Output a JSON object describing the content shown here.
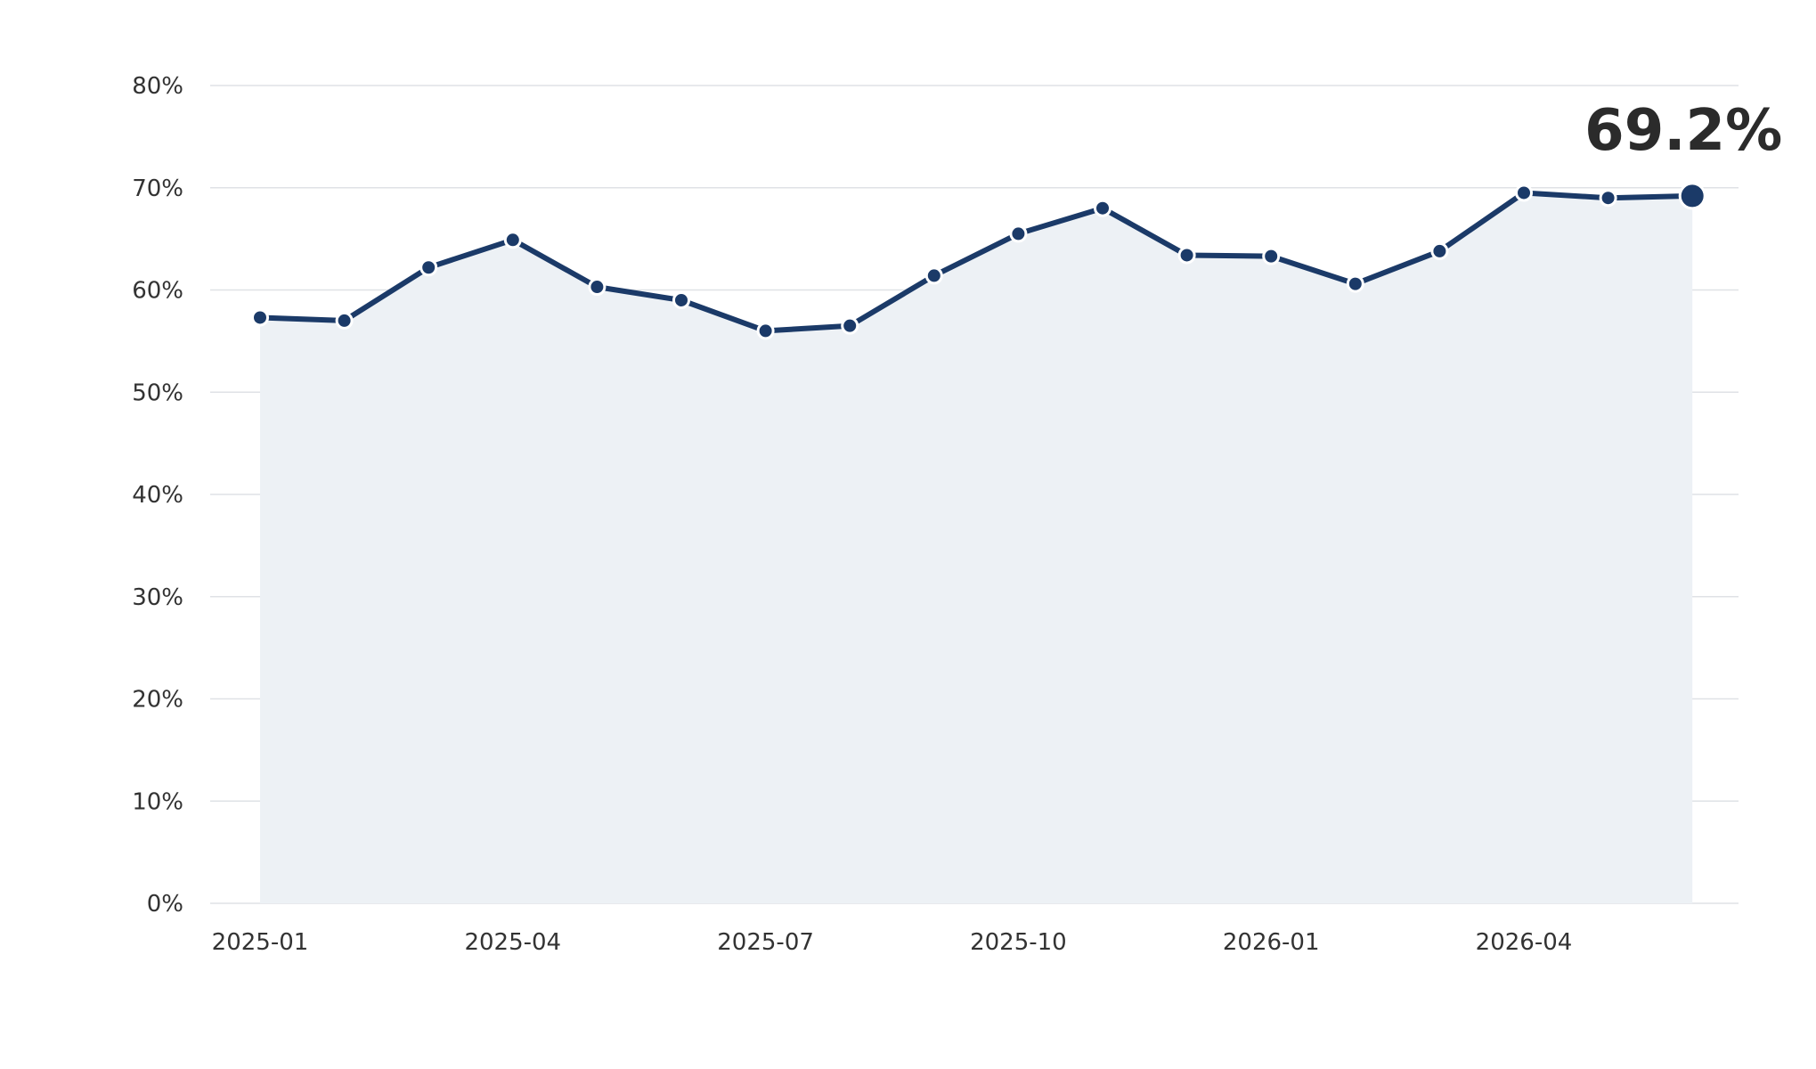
{
  "chart_data": {
    "type": "area",
    "title": "",
    "xlabel": "",
    "ylabel": "",
    "x": [
      "2025-01",
      "2025-02",
      "2025-03",
      "2025-04",
      "2025-05",
      "2025-06",
      "2025-07",
      "2025-08",
      "2025-09",
      "2025-10",
      "2025-11",
      "2025-12",
      "2026-01",
      "2026-02",
      "2026-03",
      "2026-04",
      "2026-05",
      "2026-06"
    ],
    "values": [
      57.3,
      57.0,
      62.2,
      64.9,
      60.3,
      59.0,
      56.0,
      56.5,
      61.4,
      65.5,
      68.0,
      63.4,
      63.3,
      60.6,
      63.8,
      69.5,
      69.0,
      69.2
    ],
    "ylim": [
      0,
      80
    ],
    "y_ticks": [
      {
        "value": 0,
        "label": "0%"
      },
      {
        "value": 10,
        "label": "10%"
      },
      {
        "value": 20,
        "label": "20%"
      },
      {
        "value": 30,
        "label": "30%"
      },
      {
        "value": 40,
        "label": "40%"
      },
      {
        "value": 50,
        "label": "50%"
      },
      {
        "value": 60,
        "label": "60%"
      },
      {
        "value": 70,
        "label": "70%"
      },
      {
        "value": 80,
        "label": "80%"
      }
    ],
    "x_ticks": [
      {
        "index": 0,
        "label": "2025-01"
      },
      {
        "index": 3,
        "label": "2025-04"
      },
      {
        "index": 6,
        "label": "2025-07"
      },
      {
        "index": 9,
        "label": "2025-10"
      },
      {
        "index": 12,
        "label": "2026-01"
      },
      {
        "index": 15,
        "label": "2026-04"
      }
    ],
    "last_value_label": "69.2%",
    "grid": true,
    "legend": "none",
    "colors": {
      "line": "#1b3a68",
      "area": "#edf1f5",
      "grid": "#dfe2e6",
      "marker_stroke": "#ffffff"
    }
  }
}
